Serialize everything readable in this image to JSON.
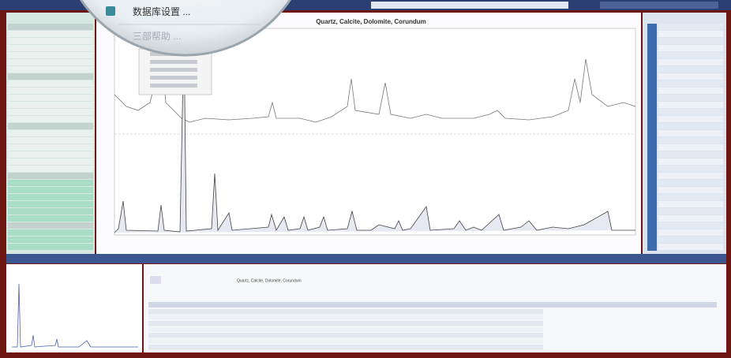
{
  "menu": {
    "items": [
      "数据库设置 ...",
      "三部帮助 ..."
    ]
  },
  "chart": {
    "title": "Quartz, Calcite, Dolomite, Corundum"
  },
  "results": {
    "rows": [
      [
        "Quartz, Calcite, Dolomite, Corundum"
      ]
    ]
  }
}
